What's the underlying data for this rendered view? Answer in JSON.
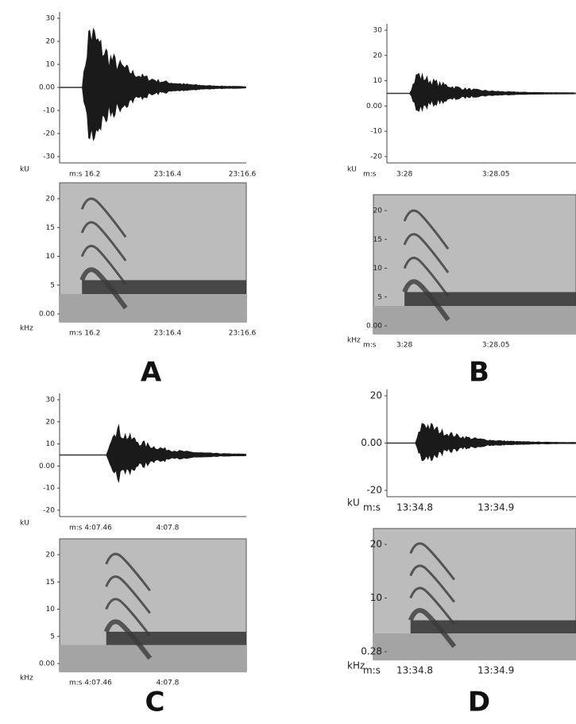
{
  "panels": [
    {
      "label": "A",
      "waveform": {
        "unit": "kU",
        "yticks": [
          "30",
          "20",
          "10",
          "0.00",
          "-10",
          "-20",
          "-30"
        ],
        "xticks": [
          "m:s 16.2",
          "23:16.4",
          "23:16.6"
        ]
      },
      "spectrogram": {
        "unit": "kHz",
        "yticks": [
          "20",
          "15",
          "10",
          "5",
          "0.00"
        ],
        "xticks": [
          "m:s 16.2",
          "23:16.4",
          "23:16.6"
        ]
      }
    },
    {
      "label": "B",
      "waveform": {
        "unit": "kU",
        "xunit": "m:s",
        "yticks": [
          "30",
          "20",
          "10",
          "0.00",
          "-10",
          "-20"
        ],
        "xticks": [
          "3:28",
          "3:28.05"
        ]
      },
      "spectrogram": {
        "unit": "kHz",
        "xunit": "m:s",
        "yticks": [
          "20",
          "15",
          "10",
          "5",
          "0.00"
        ],
        "xticks": [
          "3:28",
          "3:28.05"
        ]
      }
    },
    {
      "label": "C",
      "waveform": {
        "unit": "kU",
        "yticks": [
          "30",
          "20",
          "10",
          "0.00",
          "-10",
          "-20"
        ],
        "xticks": [
          "m:s 4:07.46",
          "4:07.8"
        ]
      },
      "spectrogram": {
        "unit": "kHz",
        "yticks": [
          "20",
          "15",
          "10",
          "5",
          "0.00"
        ],
        "xticks": [
          "m:s 4:07.46",
          "4:07.8"
        ]
      }
    },
    {
      "label": "D",
      "waveform": {
        "unit": "kU",
        "xunit": "m:s",
        "yticks": [
          "20",
          "0.00",
          "-20"
        ],
        "xticks": [
          "13:34.8",
          "13:34.9"
        ]
      },
      "spectrogram": {
        "unit": "kHz",
        "xunit": "m:s",
        "yticks": [
          "20",
          "10",
          "0.28"
        ],
        "xticks": [
          "13:34.8",
          "13:34.9"
        ]
      }
    }
  ]
}
